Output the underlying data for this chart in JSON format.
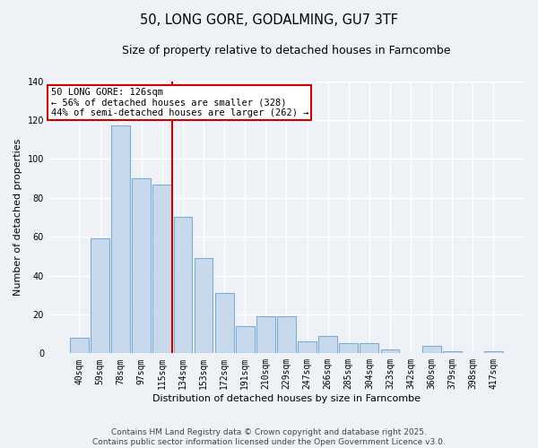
{
  "title": "50, LONG GORE, GODALMING, GU7 3TF",
  "subtitle": "Size of property relative to detached houses in Farncombe",
  "xlabel": "Distribution of detached houses by size in Farncombe",
  "ylabel": "Number of detached properties",
  "categories": [
    "40sqm",
    "59sqm",
    "78sqm",
    "97sqm",
    "115sqm",
    "134sqm",
    "153sqm",
    "172sqm",
    "191sqm",
    "210sqm",
    "229sqm",
    "247sqm",
    "266sqm",
    "285sqm",
    "304sqm",
    "323sqm",
    "342sqm",
    "360sqm",
    "379sqm",
    "398sqm",
    "417sqm"
  ],
  "values": [
    8,
    59,
    117,
    90,
    87,
    70,
    49,
    31,
    14,
    19,
    19,
    6,
    9,
    5,
    5,
    2,
    0,
    4,
    1,
    0,
    1
  ],
  "bar_color": "#c8d9ec",
  "bar_edge_color": "#7aacd6",
  "ylim": [
    0,
    140
  ],
  "yticks": [
    0,
    20,
    40,
    60,
    80,
    100,
    120,
    140
  ],
  "vline_color": "#cc0000",
  "annotation_title": "50 LONG GORE: 126sqm",
  "annotation_line1": "← 56% of detached houses are smaller (328)",
  "annotation_line2": "44% of semi-detached houses are larger (262) →",
  "footer1": "Contains HM Land Registry data © Crown copyright and database right 2025.",
  "footer2": "Contains public sector information licensed under the Open Government Licence v3.0.",
  "background_color": "#eef2f7",
  "grid_color": "#ffffff",
  "title_fontsize": 10.5,
  "subtitle_fontsize": 9,
  "axis_label_fontsize": 8,
  "tick_fontsize": 7,
  "footer_fontsize": 6.5
}
